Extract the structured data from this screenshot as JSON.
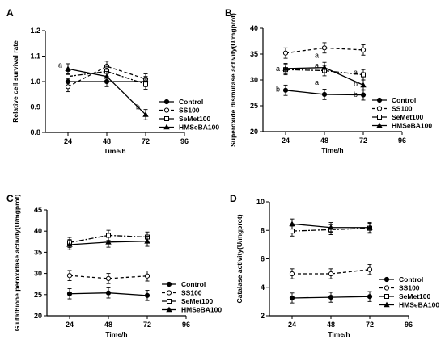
{
  "chart_data": [
    {
      "panel": "A",
      "type": "line",
      "xlabel": "Time/h",
      "ylabel": "Relative cell survival rate",
      "x": [
        24,
        48,
        72
      ],
      "xticks": [
        "24",
        "48",
        "72",
        "96"
      ],
      "xlim": [
        10,
        96
      ],
      "ylim": [
        0.8,
        1.2
      ],
      "yticks": [
        "0.8",
        "0.9",
        "1.0",
        "1.1",
        "1.2"
      ],
      "legend": "right",
      "series": [
        {
          "name": "Control",
          "values": [
            1.0,
            1.0,
            1.0
          ],
          "errors": [
            0.02,
            0.02,
            0.02
          ]
        },
        {
          "name": "SS100",
          "values": [
            0.98,
            1.06,
            1.01
          ],
          "errors": [
            0.02,
            0.02,
            0.02
          ]
        },
        {
          "name": "SeMet100",
          "values": [
            1.02,
            1.04,
            0.99
          ],
          "errors": [
            0.02,
            0.02,
            0.02
          ]
        },
        {
          "name": "HMSeBA100",
          "values": [
            1.05,
            1.02,
            0.87
          ],
          "errors": [
            0.02,
            0.02,
            0.02
          ]
        }
      ],
      "annotations": [
        {
          "text": "a",
          "x": 24,
          "y": 1.065
        },
        {
          "text": "b",
          "x": 72,
          "y": 0.9
        }
      ]
    },
    {
      "panel": "B",
      "type": "line",
      "xlabel": "Time/h",
      "ylabel": "Superoxide dismutase activity(U/mgprot)",
      "x": [
        24,
        48,
        72
      ],
      "xticks": [
        "24",
        "48",
        "72",
        "96"
      ],
      "xlim": [
        10,
        96
      ],
      "ylim": [
        20,
        40
      ],
      "yticks": [
        "20",
        "25",
        "30",
        "35",
        "40"
      ],
      "legend": "right",
      "series": [
        {
          "name": "Control",
          "values": [
            28,
            27.2,
            27.1
          ],
          "errors": [
            1.0,
            1.0,
            1.0
          ]
        },
        {
          "name": "SS100",
          "values": [
            35.2,
            36.2,
            35.8
          ],
          "errors": [
            1.0,
            1.0,
            1.0
          ]
        },
        {
          "name": "SeMet100",
          "values": [
            32,
            31.8,
            31
          ],
          "errors": [
            1.0,
            1.0,
            1.0
          ]
        },
        {
          "name": "HMSeBA100",
          "values": [
            32.2,
            32.4,
            29
          ],
          "errors": [
            1.0,
            1.0,
            1.0
          ]
        }
      ],
      "annotations": [
        {
          "text": "a",
          "x": 24,
          "y": 32.2
        },
        {
          "text": "b",
          "x": 24,
          "y": 28.2
        },
        {
          "text": "a",
          "x": 48,
          "y": 34.8
        },
        {
          "text": "a",
          "x": 48,
          "y": 32.8
        },
        {
          "text": "a",
          "x": 48,
          "y": 29.5
        },
        {
          "text": "a",
          "x": 72,
          "y": 31.5
        },
        {
          "text": "b",
          "x": 72,
          "y": 29.2
        },
        {
          "text": "b",
          "x": 72,
          "y": 27.2
        }
      ]
    },
    {
      "panel": "C",
      "type": "line",
      "xlabel": "Time/h",
      "ylabel": "Glutathione peroxidase activity(U/mgprot)",
      "x": [
        24,
        48,
        72
      ],
      "xticks": [
        "24",
        "48",
        "72",
        "96"
      ],
      "xlim": [
        10,
        96
      ],
      "ylim": [
        20,
        45
      ],
      "yticks": [
        "20",
        "25",
        "30",
        "35",
        "40",
        "45"
      ],
      "legend": "right",
      "series": [
        {
          "name": "Control",
          "values": [
            25.2,
            25.4,
            24.8
          ],
          "errors": [
            1.2,
            1.2,
            1.2
          ]
        },
        {
          "name": "SS100",
          "values": [
            29.5,
            28.8,
            29.4
          ],
          "errors": [
            1.2,
            1.2,
            1.2
          ]
        },
        {
          "name": "SeMet100",
          "values": [
            37.3,
            39,
            38.6
          ],
          "errors": [
            1.2,
            1.2,
            1.2
          ]
        },
        {
          "name": "HMSeBA100",
          "values": [
            36.8,
            37.4,
            37.6
          ],
          "errors": [
            1.2,
            1.2,
            1.2
          ]
        }
      ],
      "annotations": []
    },
    {
      "panel": "D",
      "type": "line",
      "xlabel": "Time/h",
      "ylabel": "Catalase activity(U/mgprot)",
      "x": [
        24,
        48,
        72
      ],
      "xticks": [
        "24",
        "48",
        "72",
        "96"
      ],
      "xlim": [
        10,
        96
      ],
      "ylim": [
        2,
        10
      ],
      "yticks": [
        "2",
        "4",
        "6",
        "8",
        "10"
      ],
      "legend": "right",
      "series": [
        {
          "name": "Control",
          "values": [
            3.25,
            3.3,
            3.35
          ],
          "errors": [
            0.35,
            0.35,
            0.35
          ]
        },
        {
          "name": "SS100",
          "values": [
            4.95,
            4.95,
            5.25
          ],
          "errors": [
            0.35,
            0.35,
            0.35
          ]
        },
        {
          "name": "SeMet100",
          "values": [
            7.95,
            8.05,
            8.15
          ],
          "errors": [
            0.35,
            0.35,
            0.35
          ]
        },
        {
          "name": "HMSeBA100",
          "values": [
            8.45,
            8.2,
            8.2
          ],
          "errors": [
            0.35,
            0.35,
            0.35
          ]
        }
      ],
      "annotations": []
    }
  ]
}
